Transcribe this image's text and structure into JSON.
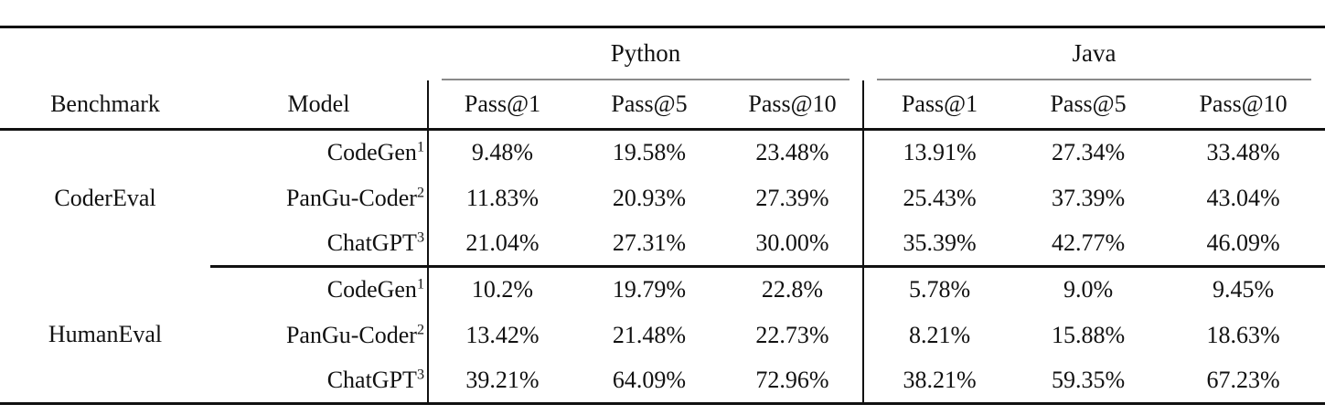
{
  "table": {
    "col_groups": {
      "python": "Python",
      "java": "Java"
    },
    "headers": {
      "benchmark": "Benchmark",
      "model": "Model",
      "pass1": "Pass@1",
      "pass5": "Pass@5",
      "pass10": "Pass@10"
    },
    "groups": [
      {
        "benchmark": "CoderEval",
        "rows": [
          {
            "model": "CodeGen",
            "sup": "1",
            "python": [
              "9.48%",
              "19.58%",
              "23.48%"
            ],
            "java": [
              "13.91%",
              "27.34%",
              "33.48%"
            ]
          },
          {
            "model": "PanGu-Coder",
            "sup": "2",
            "python": [
              "11.83%",
              "20.93%",
              "27.39%"
            ],
            "java": [
              "25.43%",
              "37.39%",
              "43.04%"
            ]
          },
          {
            "model": "ChatGPT",
            "sup": "3",
            "python": [
              "21.04%",
              "27.31%",
              "30.00%"
            ],
            "java": [
              "35.39%",
              "42.77%",
              "46.09%"
            ]
          }
        ]
      },
      {
        "benchmark": "HumanEval",
        "rows": [
          {
            "model": "CodeGen",
            "sup": "1",
            "python": [
              "10.2%",
              "19.79%",
              "22.8%"
            ],
            "java": [
              "5.78%",
              "9.0%",
              "9.45%"
            ]
          },
          {
            "model": "PanGu-Coder",
            "sup": "2",
            "python": [
              "13.42%",
              "21.48%",
              "22.73%"
            ],
            "java": [
              "8.21%",
              "15.88%",
              "18.63%"
            ]
          },
          {
            "model": "ChatGPT",
            "sup": "3",
            "python": [
              "39.21%",
              "64.09%",
              "72.96%"
            ],
            "java": [
              "38.21%",
              "59.35%",
              "67.23%"
            ]
          }
        ]
      }
    ],
    "colors": {
      "rule_black": "#111111",
      "cmidrule_gray": "#8a8a8a",
      "background": "#ffffff"
    }
  }
}
